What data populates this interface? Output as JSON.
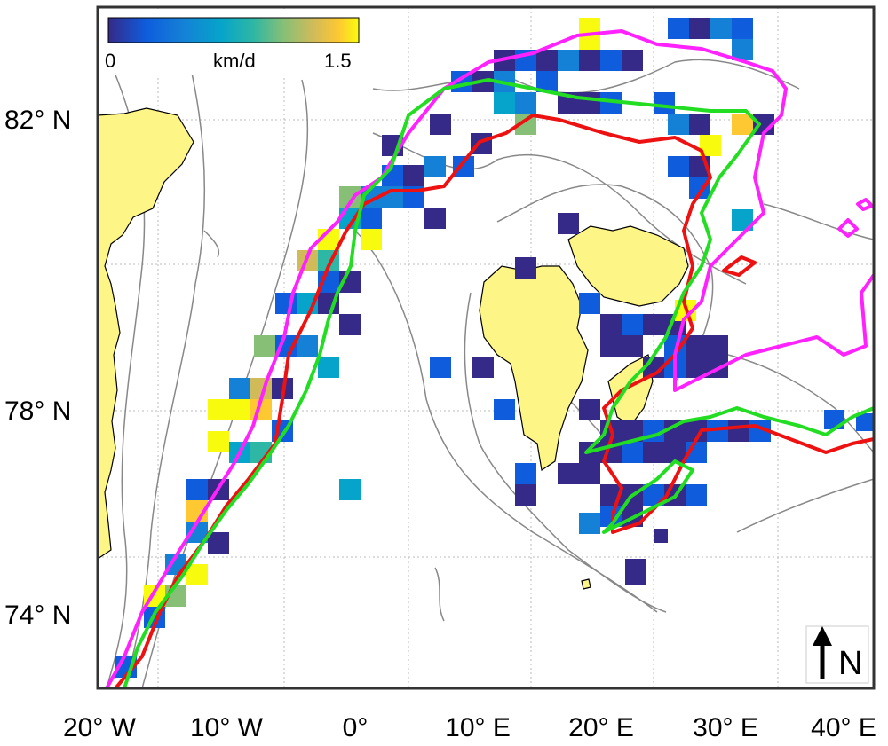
{
  "colorbar": {
    "min_label": "0",
    "unit_label": "km/d",
    "max_label": "1.5",
    "min_value": 0,
    "max_value": 1.5,
    "colormap": "parula",
    "colors": [
      "#352a87",
      "#0f5cdd",
      "#1481d6",
      "#06a4ca",
      "#2eb7a4",
      "#87bf77",
      "#d1bb59",
      "#fec832",
      "#f9fb0e"
    ]
  },
  "latitude_labels": [
    "82° N",
    "78° N",
    "74° N"
  ],
  "longitude_labels": [
    "20° W",
    "10° W",
    "0°",
    "10° E",
    "20° E",
    "30° E",
    "40° E"
  ],
  "north_arrow": {
    "label": "N",
    "icon": "north-arrow-icon"
  },
  "colors": {
    "land": "#fdf586",
    "contour": "#888888",
    "graticule": "#bbbbbb",
    "red_line": "#ee1111",
    "magenta_line": "#ff22ff",
    "green_line": "#22dd22"
  }
}
